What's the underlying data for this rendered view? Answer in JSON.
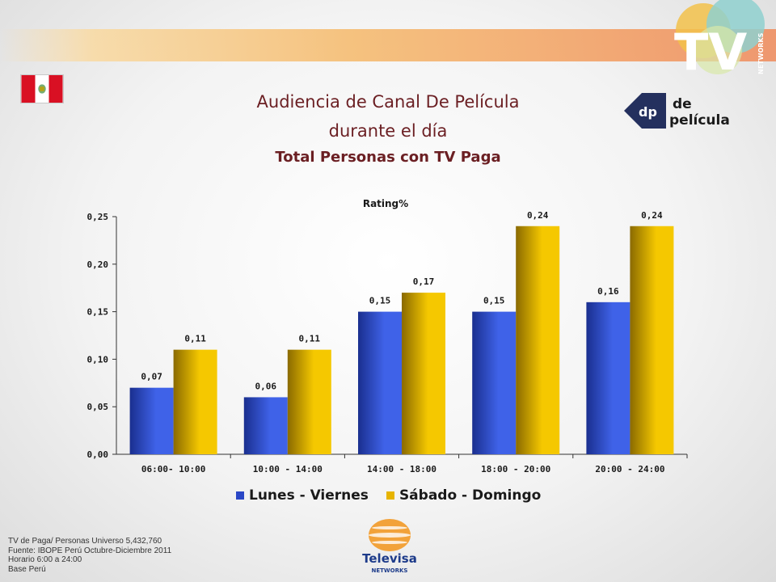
{
  "slide": {
    "title_line1": "Audiencia de Canal De Película",
    "title_line2": "durante el día",
    "subtitle": "Total Personas con TV Paga",
    "logos": {
      "tv_networks": "TV NETWORKS",
      "de_pelicula": "de película",
      "televisa": "Televisa NETWORKS"
    },
    "footnotes": [
      "TV de Paga/ Personas Universo 5,432,760",
      "Fuente: IBOPE Perú Octubre-Diciembre 2011",
      "Horario 6:00 a 24:00",
      "Base Perú"
    ]
  },
  "chart_data": {
    "type": "bar",
    "title": "Rating%",
    "categories": [
      "06:00- 10:00",
      "10:00 - 14:00",
      "14:00 - 18:00",
      "18:00 - 20:00",
      "20:00 - 24:00"
    ],
    "series": [
      {
        "name": "Lunes - Viernes",
        "values": [
          0.07,
          0.06,
          0.15,
          0.15,
          0.16
        ],
        "labels": [
          "0,07",
          "0,06",
          "0,15",
          "0,15",
          "0,16"
        ],
        "color": "#2a47c6"
      },
      {
        "name": "Sábado - Domingo",
        "values": [
          0.11,
          0.11,
          0.17,
          0.24,
          0.24
        ],
        "labels": [
          "0,11",
          "0,11",
          "0,17",
          "0,24",
          "0,24"
        ],
        "color": "#e7b400"
      }
    ],
    "yticks": [
      0,
      0.05,
      0.1,
      0.15,
      0.2,
      0.25
    ],
    "ytick_labels": [
      "0,00",
      "0,05",
      "0,10",
      "0,15",
      "0,20",
      "0,25"
    ],
    "ylim": [
      0,
      0.25
    ],
    "grid": false,
    "legend_position": "bottom"
  }
}
